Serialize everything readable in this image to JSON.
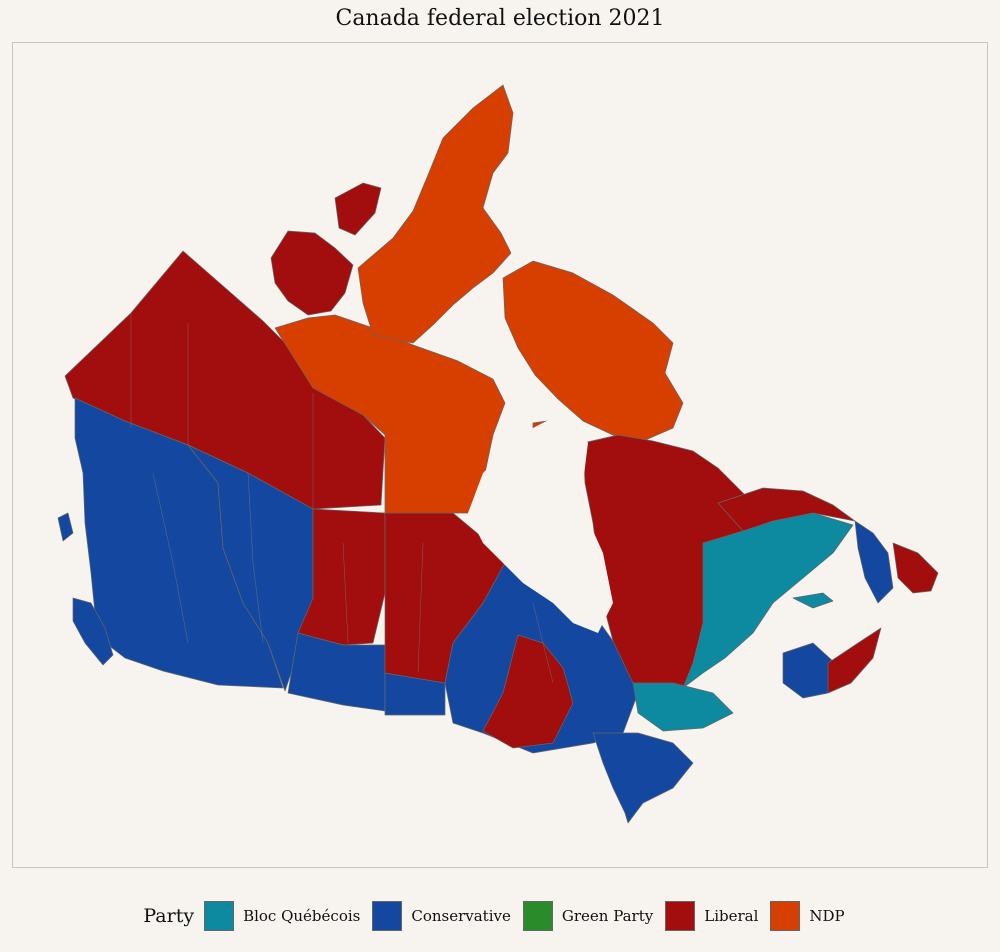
{
  "title": "Canada federal election 2021",
  "legend": {
    "title": "Party",
    "items": [
      {
        "label": "Bloc Québécois",
        "color": "#0d8aa0"
      },
      {
        "label": "Conservative",
        "color": "#1448a0"
      },
      {
        "label": "Green Party",
        "color": "#2a8b2a"
      },
      {
        "label": "Liberal",
        "color": "#a20d0d"
      },
      {
        "label": "NDP",
        "color": "#d63f00"
      }
    ]
  },
  "colors": {
    "bloc": "#0d8aa0",
    "conservative": "#1448a0",
    "liberal": "#a20d0d",
    "ndp": "#d63f00",
    "background": "#f7f4f0",
    "boundary": "#666666"
  }
}
